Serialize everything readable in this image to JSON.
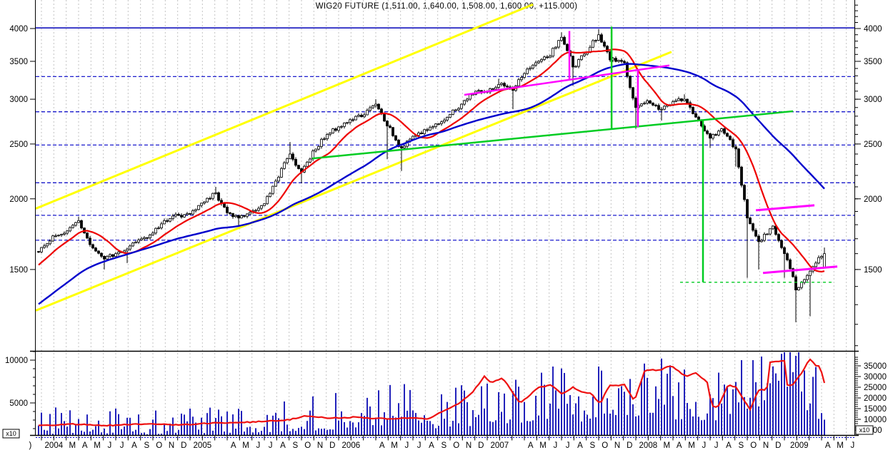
{
  "title": "WIG20 FUTURE (1,511.00, 1,640.00, 1,508.00, 1,600.00, +115.000)",
  "colors": {
    "background": "#ffffff",
    "axis": "#000000",
    "grid": "#c3c3c3",
    "level_dashed": "#0000c8",
    "level_solid": "#0000b8",
    "candle_up": "#ffffff",
    "candle_down": "#000000",
    "ma_fast": "#ee0000",
    "ma_slow": "#0000cc",
    "channel_yellow": "#ffff00",
    "trend_green": "#00cc22",
    "trend_magenta": "#ff00ff",
    "volume_bars": "#2222bb",
    "open_interest": "#ee1111"
  },
  "price_axis": {
    "ticks": [
      {
        "label": "4000",
        "value": 4000
      },
      {
        "label": "3500",
        "value": 3500
      },
      {
        "label": "3000",
        "value": 3000
      },
      {
        "label": "2500",
        "value": 2500
      },
      {
        "label": "2000",
        "value": 2000
      },
      {
        "label": "1500",
        "value": 1500
      }
    ],
    "minor_step": 100,
    "minor_min": 1100,
    "minor_max": 4400
  },
  "volume_axis_left": {
    "ticks": [
      {
        "label": "10000",
        "value": 10000
      },
      {
        "label": "5000",
        "value": 5000
      }
    ],
    "minor_step": 1000,
    "minor_min": 2000,
    "minor_max": 11000,
    "multiplier_label": "x10"
  },
  "volume_axis_right": {
    "ticks": [
      {
        "label": "35000",
        "value": 35000
      },
      {
        "label": "30000",
        "value": 30000
      },
      {
        "label": "25000",
        "value": 25000
      },
      {
        "label": "20000",
        "value": 20000
      },
      {
        "label": "15000",
        "value": 15000
      },
      {
        "label": "10000",
        "value": 10000
      },
      {
        "label": "5000",
        "value": 5000
      }
    ],
    "minor_step": 1000,
    "minor_min": 6000,
    "minor_max": 39000,
    "multiplier_label": "x10"
  },
  "x_axis": {
    "labels": [
      {
        "text": ")",
        "m": -0.9
      },
      {
        "text": "2004",
        "m": 1.0
      },
      {
        "text": "M",
        "m": 2.5
      },
      {
        "text": "A",
        "m": 3.5
      },
      {
        "text": "M",
        "m": 4.5
      },
      {
        "text": "J",
        "m": 5.5
      },
      {
        "text": "J",
        "m": 6.5
      },
      {
        "text": "A",
        "m": 7.5
      },
      {
        "text": "S",
        "m": 8.5
      },
      {
        "text": "O",
        "m": 9.5
      },
      {
        "text": "N",
        "m": 10.5
      },
      {
        "text": "D",
        "m": 11.5
      },
      {
        "text": "2005",
        "m": 13.0
      },
      {
        "text": "A",
        "m": 15.5
      },
      {
        "text": "M",
        "m": 16.5
      },
      {
        "text": "J",
        "m": 17.5
      },
      {
        "text": "J",
        "m": 18.5
      },
      {
        "text": "A",
        "m": 19.5
      },
      {
        "text": "S",
        "m": 20.5
      },
      {
        "text": "O",
        "m": 21.5
      },
      {
        "text": "N",
        "m": 22.5
      },
      {
        "text": "D",
        "m": 23.5
      },
      {
        "text": "2006",
        "m": 25.0
      },
      {
        "text": "A",
        "m": 27.5
      },
      {
        "text": "M",
        "m": 28.5
      },
      {
        "text": "J",
        "m": 29.5
      },
      {
        "text": "J",
        "m": 30.5
      },
      {
        "text": "A",
        "m": 31.5
      },
      {
        "text": "S",
        "m": 32.5
      },
      {
        "text": "O",
        "m": 33.5
      },
      {
        "text": "N",
        "m": 34.5
      },
      {
        "text": "D",
        "m": 35.5
      },
      {
        "text": "2007",
        "m": 37.0
      },
      {
        "text": "A",
        "m": 39.5
      },
      {
        "text": "M",
        "m": 40.5
      },
      {
        "text": "J",
        "m": 41.5
      },
      {
        "text": "J",
        "m": 42.5
      },
      {
        "text": "A",
        "m": 43.5
      },
      {
        "text": "S",
        "m": 44.5
      },
      {
        "text": "O",
        "m": 45.5
      },
      {
        "text": "N",
        "m": 46.5
      },
      {
        "text": "D",
        "m": 47.5
      },
      {
        "text": "2008",
        "m": 49.0
      },
      {
        "text": "M",
        "m": 50.5
      },
      {
        "text": "A",
        "m": 51.5
      },
      {
        "text": "M",
        "m": 52.5
      },
      {
        "text": "J",
        "m": 53.5
      },
      {
        "text": "J",
        "m": 54.5
      },
      {
        "text": "A",
        "m": 55.5
      },
      {
        "text": "S",
        "m": 56.5
      },
      {
        "text": "O",
        "m": 57.5
      },
      {
        "text": "N",
        "m": 58.5
      },
      {
        "text": "D",
        "m": 59.5
      },
      {
        "text": "2009",
        "m": 61.2
      },
      {
        "text": "A",
        "m": 63.5
      },
      {
        "text": "M",
        "m": 64.5
      },
      {
        "text": "J",
        "m": 65.5
      }
    ]
  },
  "chart_data": {
    "type": "candlestick+volume",
    "instrument": "WIG20 FUTURE",
    "last": {
      "open": 1511.0,
      "high": 1640.0,
      "low": 1508.0,
      "close": 1600.0,
      "change": "+115.000"
    },
    "price_scale": "log",
    "time_range_years": [
      -0.04,
      5.45
    ],
    "levels_dashed": [
      3290,
      2850,
      2490,
      2135,
      1870,
      1690
    ],
    "level_solid": 4010,
    "ma_fast_weeks": 13,
    "ma_slow_weeks": 52,
    "lead_in": [
      [
        -1.0,
        1050
      ],
      [
        -0.83,
        1120
      ],
      [
        -0.67,
        1200
      ],
      [
        -0.5,
        1300
      ],
      [
        -0.33,
        1400
      ],
      [
        -0.17,
        1495
      ]
    ],
    "monthly": [
      [
        -0.08,
        1575,
        null,
        null
      ],
      [
        0,
        1640,
        null,
        null
      ],
      [
        0.083,
        1720,
        null,
        null
      ],
      [
        0.167,
        1755,
        null,
        null
      ],
      [
        0.25,
        1830,
        null,
        1860
      ],
      [
        0.333,
        1660,
        null,
        null
      ],
      [
        0.417,
        1565,
        1500,
        null
      ],
      [
        0.5,
        1600,
        null,
        null
      ],
      [
        0.583,
        1630,
        1540,
        null
      ],
      [
        0.667,
        1700,
        null,
        null
      ],
      [
        0.75,
        1740,
        null,
        null
      ],
      [
        0.833,
        1830,
        null,
        null
      ],
      [
        0.917,
        1870,
        null,
        null
      ],
      [
        1,
        1880,
        null,
        null
      ],
      [
        1.083,
        1965,
        null,
        null
      ],
      [
        1.167,
        2050,
        null,
        2100
      ],
      [
        1.25,
        1890,
        null,
        null
      ],
      [
        1.333,
        1850,
        1795,
        null
      ],
      [
        1.417,
        1905,
        null,
        null
      ],
      [
        1.5,
        1960,
        null,
        null
      ],
      [
        1.583,
        2150,
        null,
        null
      ],
      [
        1.667,
        2400,
        null,
        2520
      ],
      [
        1.75,
        2230,
        2130,
        null
      ],
      [
        1.833,
        2430,
        null,
        null
      ],
      [
        1.917,
        2600,
        null,
        null
      ],
      [
        2,
        2680,
        null,
        null
      ],
      [
        2.083,
        2760,
        null,
        null
      ],
      [
        2.167,
        2815,
        null,
        null
      ],
      [
        2.25,
        2940,
        null,
        3000
      ],
      [
        2.333,
        2690,
        2350,
        null
      ],
      [
        2.417,
        2460,
        2240,
        null
      ],
      [
        2.5,
        2580,
        null,
        null
      ],
      [
        2.583,
        2650,
        null,
        null
      ],
      [
        2.667,
        2715,
        null,
        null
      ],
      [
        2.75,
        2820,
        null,
        null
      ],
      [
        2.833,
        2940,
        null,
        null
      ],
      [
        2.917,
        3100,
        null,
        null
      ],
      [
        3,
        3090,
        null,
        null
      ],
      [
        3.083,
        3185,
        null,
        3260
      ],
      [
        3.167,
        3110,
        2880,
        null
      ],
      [
        3.25,
        3330,
        null,
        null
      ],
      [
        3.333,
        3480,
        null,
        null
      ],
      [
        3.417,
        3575,
        null,
        null
      ],
      [
        3.5,
        3860,
        null,
        3940
      ],
      [
        3.583,
        3420,
        3170,
        null
      ],
      [
        3.667,
        3630,
        null,
        null
      ],
      [
        3.75,
        3900,
        null,
        3990
      ],
      [
        3.833,
        3520,
        null,
        null
      ],
      [
        3.917,
        3480,
        null,
        null
      ],
      [
        4,
        2900,
        2660,
        null
      ],
      [
        4.083,
        2980,
        null,
        null
      ],
      [
        4.167,
        2880,
        2750,
        null
      ],
      [
        4.25,
        2970,
        null,
        null
      ],
      [
        4.333,
        3000,
        null,
        3060
      ],
      [
        4.417,
        2750,
        null,
        null
      ],
      [
        4.5,
        2560,
        2460,
        null
      ],
      [
        4.583,
        2660,
        null,
        null
      ],
      [
        4.667,
        2450,
        2280,
        null
      ],
      [
        4.75,
        1850,
        1450,
        null
      ],
      [
        4.833,
        1680,
        1500,
        null
      ],
      [
        4.917,
        1790,
        null,
        null
      ],
      [
        5,
        1600,
        1450,
        null
      ],
      [
        5.083,
        1380,
        1210,
        null
      ],
      [
        5.167,
        1490,
        1240,
        null
      ],
      [
        5.26,
        1600,
        1508,
        1640
      ]
    ],
    "trendlines": [
      {
        "id": "channel-upper",
        "color": "channel_yellow",
        "width": 3,
        "pts": [
          [
            -0.038,
            1922
          ],
          [
            3.308,
            4412
          ]
        ]
      },
      {
        "id": "channel-lower",
        "color": "channel_yellow",
        "width": 3,
        "pts": [
          [
            -0.038,
            1269
          ],
          [
            4.24,
            3637
          ]
        ]
      },
      {
        "id": "support-green",
        "color": "trend_green",
        "width": 2.5,
        "pts": [
          [
            1.822,
            2357
          ],
          [
            5.058,
            2857
          ]
        ]
      },
      {
        "id": "green-vertical-1",
        "color": "trend_green",
        "width": 2.5,
        "pts": [
          [
            3.837,
            4030
          ],
          [
            3.837,
            2650
          ]
        ]
      },
      {
        "id": "green-vertical-2",
        "color": "trend_green",
        "width": 2.5,
        "pts": [
          [
            4.452,
            2760
          ],
          [
            4.452,
            1424
          ]
        ]
      },
      {
        "id": "green-dashed-level",
        "color": "trend_green",
        "width": 1.4,
        "dash": "4,4",
        "pts": [
          [
            4.298,
            1424
          ],
          [
            5.322,
            1424
          ]
        ]
      },
      {
        "id": "magenta-diagonal",
        "color": "trend_magenta",
        "width": 2.5,
        "pts": [
          [
            2.846,
            3054
          ],
          [
            4.226,
            3442
          ]
        ]
      },
      {
        "id": "magenta-vertical-1",
        "color": "trend_magenta",
        "width": 2.5,
        "pts": [
          [
            3.553,
            3960
          ],
          [
            3.553,
            3250
          ]
        ]
      },
      {
        "id": "magenta-vertical-2",
        "color": "trend_magenta",
        "width": 2.5,
        "pts": [
          [
            4.014,
            3390
          ],
          [
            4.014,
            2680
          ]
        ]
      },
      {
        "id": "magenta-seg-upper",
        "color": "trend_magenta",
        "width": 3,
        "pts": [
          [
            4.808,
            1909
          ],
          [
            5.202,
            1948
          ]
        ]
      },
      {
        "id": "magenta-seg-lower",
        "color": "trend_magenta",
        "width": 3,
        "pts": [
          [
            4.856,
            1479
          ],
          [
            5.356,
            1518
          ]
        ]
      }
    ],
    "volume_envelope": [
      [
        -0.04,
        2400
      ],
      [
        0.3,
        2800
      ],
      [
        0.6,
        2300
      ],
      [
        1.0,
        2700
      ],
      [
        1.3,
        2500
      ],
      [
        1.6,
        3000
      ],
      [
        1.9,
        3300
      ],
      [
        2.2,
        3900
      ],
      [
        2.45,
        4800
      ],
      [
        2.6,
        3500
      ],
      [
        2.9,
        4200
      ],
      [
        3.1,
        4700
      ],
      [
        3.4,
        5200
      ],
      [
        3.7,
        5000
      ],
      [
        4.0,
        6200
      ],
      [
        4.2,
        5600
      ],
      [
        4.5,
        5000
      ],
      [
        4.7,
        6800
      ],
      [
        4.9,
        6300
      ],
      [
        5.1,
        6800
      ],
      [
        5.27,
        5300
      ]
    ],
    "volume_spikes": [
      {
        "t": 2.44,
        "v": 7200
      },
      {
        "t": 3.22,
        "v": 6900
      },
      {
        "t": 3.97,
        "v": 7800
      },
      {
        "t": 4.06,
        "v": 9600
      },
      {
        "t": 4.23,
        "v": 9400
      },
      {
        "t": 4.71,
        "v": 10000
      },
      {
        "t": 4.79,
        "v": 10000
      },
      {
        "t": 4.9,
        "v": 7300
      },
      {
        "t": 5.05,
        "v": 8600
      },
      {
        "t": 5.13,
        "v": 8800
      }
    ],
    "open_interest": [
      [
        -0.04,
        7000
      ],
      [
        0.2,
        7800
      ],
      [
        0.44,
        7100
      ],
      [
        0.68,
        7800
      ],
      [
        0.92,
        7400
      ],
      [
        1.16,
        8200
      ],
      [
        1.4,
        8700
      ],
      [
        1.64,
        9500
      ],
      [
        1.79,
        11700
      ],
      [
        1.93,
        10500
      ],
      [
        2.1,
        11000
      ],
      [
        2.3,
        10300
      ],
      [
        2.5,
        10800
      ],
      [
        2.61,
        10300
      ],
      [
        2.7,
        13700
      ],
      [
        2.8,
        17000
      ],
      [
        2.9,
        22500
      ],
      [
        2.98,
        30000
      ],
      [
        3.03,
        27000
      ],
      [
        3.1,
        29300
      ],
      [
        3.16,
        24000
      ],
      [
        3.22,
        17300
      ],
      [
        3.34,
        24800
      ],
      [
        3.43,
        26000
      ],
      [
        3.5,
        22000
      ],
      [
        3.58,
        25000
      ],
      [
        3.63,
        23000
      ],
      [
        3.7,
        22000
      ],
      [
        3.76,
        17000
      ],
      [
        3.82,
        26000
      ],
      [
        3.88,
        25800
      ],
      [
        3.92,
        26700
      ],
      [
        3.99,
        18700
      ],
      [
        4.06,
        32700
      ],
      [
        4.1,
        33300
      ],
      [
        4.16,
        32800
      ],
      [
        4.24,
        35300
      ],
      [
        4.32,
        30800
      ],
      [
        4.35,
        30300
      ],
      [
        4.4,
        32000
      ],
      [
        4.48,
        27500
      ],
      [
        4.51,
        16500
      ],
      [
        4.55,
        15500
      ],
      [
        4.62,
        26000
      ],
      [
        4.67,
        25300
      ],
      [
        4.71,
        21000
      ],
      [
        4.77,
        14300
      ],
      [
        4.82,
        23300
      ],
      [
        4.86,
        24300
      ],
      [
        4.88,
        22000
      ],
      [
        4.9,
        36800
      ],
      [
        5.0,
        37500
      ],
      [
        5.02,
        25500
      ],
      [
        5.06,
        26500
      ],
      [
        5.11,
        31000
      ],
      [
        5.17,
        38300
      ],
      [
        5.21,
        35300
      ],
      [
        5.24,
        34800
      ],
      [
        5.27,
        26700
      ]
    ]
  }
}
